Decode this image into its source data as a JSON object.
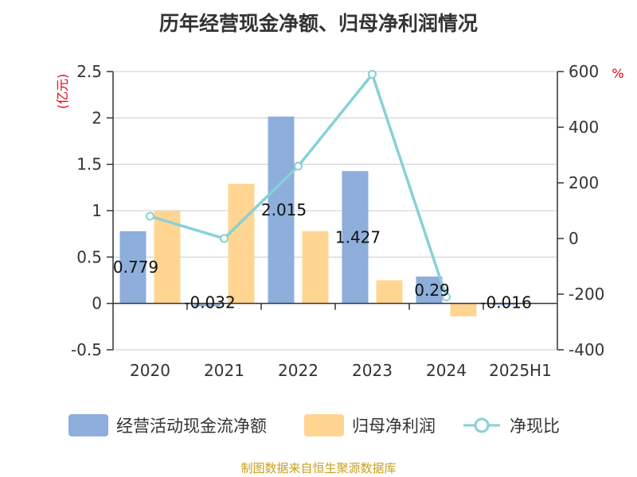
{
  "title": "历年经营现金净额、归母净利润情况",
  "source": "制图数据来自恒生聚源数据库",
  "colors": {
    "cash": "#8eaedb",
    "profit": "#ffd591",
    "ratio": "#86d1d8",
    "unit": "#e60012"
  },
  "chart_data": {
    "type": "bar",
    "categories": [
      "2020",
      "2021",
      "2022",
      "2023",
      "2024",
      "2025H1"
    ],
    "series": [
      {
        "name": "经营活动现金流净额",
        "type": "bar",
        "axis": "left",
        "values": [
          0.779,
          -0.032,
          2.015,
          1.427,
          0.29,
          -0.016
        ],
        "labels": [
          "0.779",
          "-0.032",
          "2.015",
          "1.427",
          "0.29",
          "-0.016"
        ]
      },
      {
        "name": "归母净利润",
        "type": "bar",
        "axis": "left",
        "values": [
          1.0,
          1.29,
          0.78,
          0.25,
          -0.14,
          0.0
        ]
      },
      {
        "name": "净现比",
        "type": "line",
        "axis": "right",
        "values": [
          80,
          0,
          260,
          590,
          -210,
          null
        ]
      }
    ],
    "left_axis": {
      "unit": "(亿元)",
      "ylim": [
        -0.5,
        2.5
      ],
      "ticks": [
        "-0.5",
        "0",
        "0.5",
        "1",
        "1.5",
        "2",
        "2.5"
      ]
    },
    "right_axis": {
      "unit": "%",
      "ylim": [
        -400,
        600
      ],
      "ticks": [
        "-400",
        "-200",
        "0",
        "200",
        "400",
        "600"
      ]
    },
    "grid": true,
    "legend_position": "bottom"
  }
}
